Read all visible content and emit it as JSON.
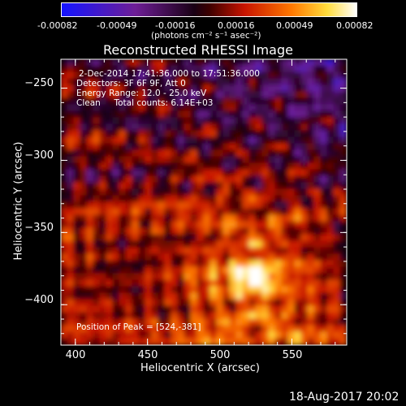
{
  "colorbar": {
    "tick_labels": [
      "-0.00082",
      "-0.00049",
      "-0.00016",
      "0.00016",
      "0.00049",
      "0.00082"
    ],
    "units_label": "(photons cm⁻² s⁻¹ asec⁻²)"
  },
  "chart_data": {
    "type": "heatmap",
    "title": "Reconstructed RHESSI Image",
    "xlabel": "Heliocentric X (arcsec)",
    "ylabel": "Heliocentric Y (arcsec)",
    "xlim": [
      390,
      588
    ],
    "ylim": [
      -428,
      -230
    ],
    "x_ticks": [
      400,
      450,
      500,
      550
    ],
    "y_ticks": [
      -250,
      -300,
      -350,
      -400
    ],
    "x_tick_labels": [
      "400",
      "450",
      "500",
      "550"
    ],
    "y_tick_labels": [
      "−250",
      "−300",
      "−350",
      "−400"
    ],
    "color_range": [
      -0.00082,
      0.00082
    ],
    "peak_position": [
      524,
      -381
    ],
    "annotations": {
      "time": "2-Dec-2014 17:41:36.000 to 17:51:36.000",
      "detectors": "Detectors: 3F 6F 9F, Att 0",
      "energy": "Energy Range: 12.0 - 25.0 keV",
      "clean": "Clean     Total counts: 6.14E+03",
      "peak": "Position of Peak = [524,-381]"
    }
  },
  "footer": {
    "timestamp": "18-Aug-2017 20:02"
  }
}
